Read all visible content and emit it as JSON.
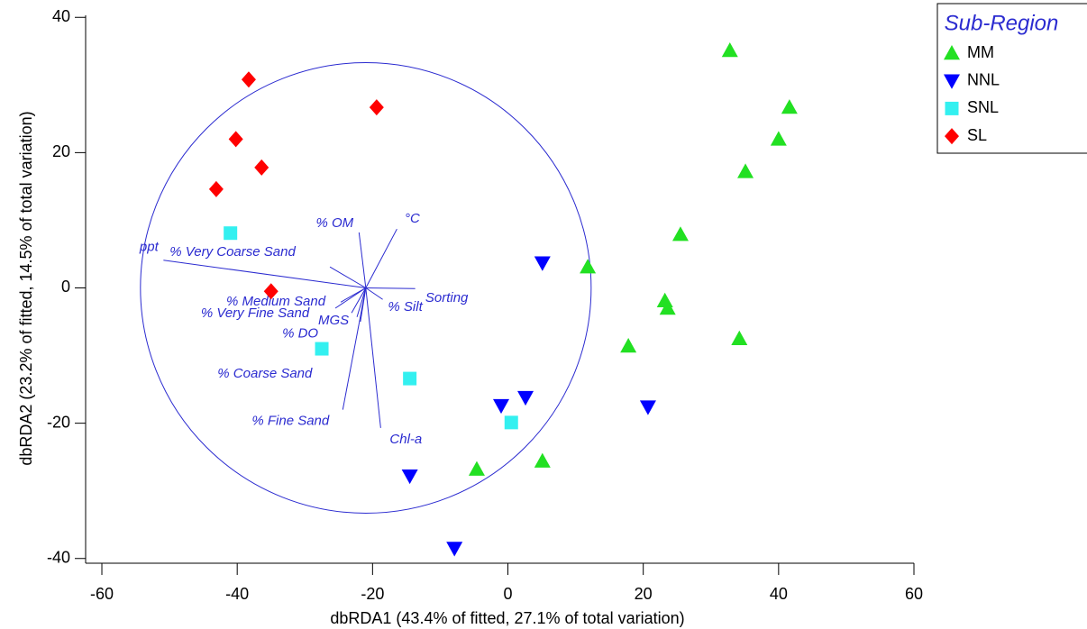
{
  "chart_data": {
    "type": "scatter",
    "x_label": "dbRDA1 (43.4% of fitted, 27.1% of total variation)",
    "y_label": "dbRDA2 (23.2% of fitted, 14.5% of total variation)",
    "xlim": [
      -62.4,
      60
    ],
    "ylim": [
      -40.7,
      40.3
    ],
    "xticks": [
      -60,
      -40,
      -20,
      0,
      20,
      40,
      60
    ],
    "yticks": [
      -40,
      -20,
      0,
      20,
      40
    ],
    "legend_title": "Sub-Region",
    "legend_position": "top-right",
    "series": [
      {
        "name": "MM",
        "color": "#22e022",
        "marker": "triangle-up",
        "x": [
          32.8,
          41.6,
          40.0,
          35.1,
          25.5,
          11.8,
          23.2,
          23.6,
          34.2,
          17.8,
          -4.6,
          5.1
        ],
        "y": [
          35.1,
          26.7,
          22.0,
          17.2,
          7.9,
          3.1,
          -1.9,
          -3.0,
          -7.5,
          -8.6,
          -26.8,
          -25.6
        ]
      },
      {
        "name": "NNL",
        "color": "#0000ff",
        "marker": "triangle-down",
        "x": [
          5.1,
          -1.0,
          2.6,
          20.7,
          -14.5,
          -7.9
        ],
        "y": [
          3.7,
          -17.4,
          -16.2,
          -17.6,
          -27.8,
          -38.5
        ]
      },
      {
        "name": "SNL",
        "color": "#33f0f0",
        "marker": "square",
        "x": [
          -41.0,
          -27.5,
          -14.5,
          0.5
        ],
        "y": [
          8.1,
          -9.0,
          -13.4,
          -19.9
        ]
      },
      {
        "name": "SL",
        "color": "#ff0000",
        "marker": "diamond",
        "x": [
          -38.3,
          -19.4,
          -40.2,
          -36.4,
          -43.1,
          -35.0
        ],
        "y": [
          30.8,
          26.7,
          22.0,
          17.8,
          14.6,
          -0.5
        ]
      }
    ],
    "circle": {
      "cx": -21.0,
      "cy": 0.0,
      "r": 33.3,
      "color": "#2b2bd0"
    },
    "vectors": [
      {
        "label": "ppt",
        "x": -50.9,
        "y": 4.1
      },
      {
        "label": "% Very Coarse Sand",
        "x": -26.3,
        "y": 3.1
      },
      {
        "label": "% OM",
        "x": -22.0,
        "y": 8.2
      },
      {
        "label": "°C",
        "x": -16.4,
        "y": 8.7
      },
      {
        "label": "Sorting",
        "x": -13.7,
        "y": -0.1
      },
      {
        "label": "% Silt",
        "x": -18.5,
        "y": -1.7
      },
      {
        "label": "% Medium Sand",
        "x": -24.7,
        "y": -2.1
      },
      {
        "label": "% Very Fine Sand",
        "x": -25.5,
        "y": -3.0
      },
      {
        "label": "MGS",
        "x": -23.1,
        "y": -3.7
      },
      {
        "label": "% DO",
        "x": -22.3,
        "y": -4.3
      },
      {
        "label": "% Coarse Sand",
        "x": -21.8,
        "y": -5.0
      },
      {
        "label": "% Fine Sand",
        "x": -24.4,
        "y": -18.0
      },
      {
        "label": "Chl-a",
        "x": -18.8,
        "y": -20.7
      }
    ]
  }
}
